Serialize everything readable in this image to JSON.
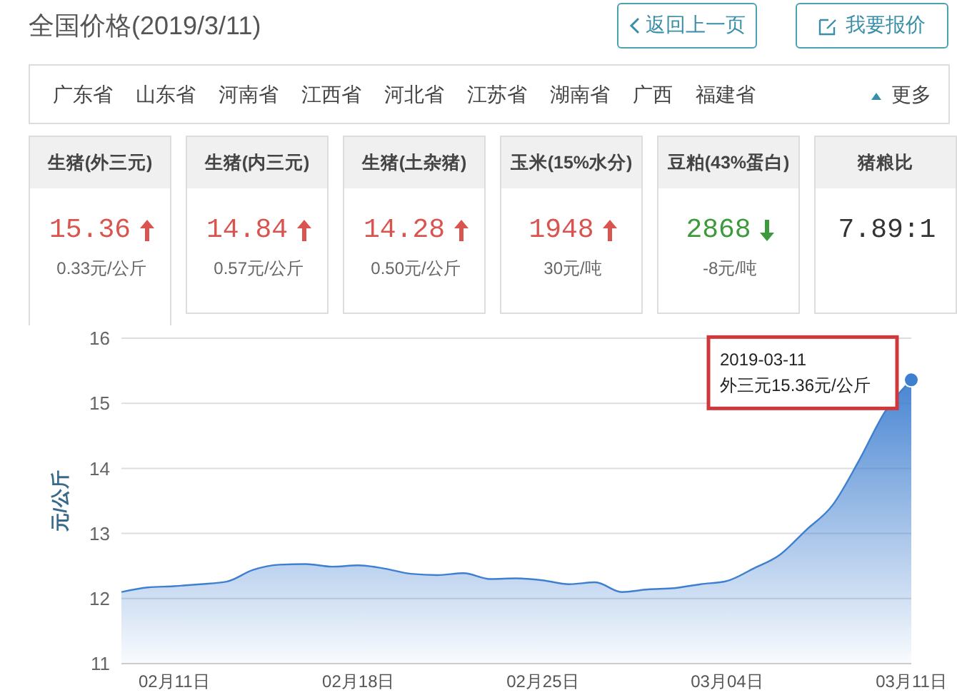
{
  "chart_data": [
    {
      "type": "other",
      "title": "全国价格(2019/3/11)",
      "annotations": [
        "返回上一页",
        "我要报价"
      ]
    },
    {
      "type": "other",
      "categories": [
        "广东省",
        "山东省",
        "河南省",
        "江西省",
        "河北省",
        "江苏省",
        "湖南省",
        "广西",
        "福建省"
      ],
      "annotations": [
        "更多"
      ]
    },
    {
      "type": "other",
      "categories": [
        "生猪(外三元)",
        "生猪(内三元)",
        "生猪(土杂猪)",
        "玉米(15%水分)",
        "豆粕(43%蛋白)",
        "猪粮比"
      ],
      "value_labels": [
        "15.36",
        "14.84",
        "14.28",
        "1948",
        "2868",
        "7.89:1"
      ],
      "annotations": [
        "0.33元/公斤",
        "0.57元/公斤",
        "0.50元/公斤",
        "30元/吨",
        "-8元/吨"
      ]
    },
    {
      "type": "area",
      "ylabel": "元/公斤",
      "color": "#3f7fd0",
      "marker": "none",
      "grid": "y",
      "x": [
        "2019-02-09",
        "2019-02-10",
        "2019-02-11",
        "2019-02-12",
        "2019-02-13",
        "2019-02-14",
        "2019-02-15",
        "2019-02-16",
        "2019-02-17",
        "2019-02-18",
        "2019-02-19",
        "2019-02-20",
        "2019-02-21",
        "2019-02-22",
        "2019-02-23",
        "2019-02-24",
        "2019-02-25",
        "2019-02-26",
        "2019-02-27",
        "2019-02-28",
        "2019-03-01",
        "2019-03-02",
        "2019-03-03",
        "2019-03-04",
        "2019-03-05",
        "2019-03-06",
        "2019-03-07",
        "2019-03-08",
        "2019-03-09",
        "2019-03-10",
        "2019-03-11"
      ],
      "values": [
        12.1,
        12.17,
        12.19,
        12.22,
        12.26,
        12.44,
        12.52,
        12.53,
        12.49,
        12.51,
        12.46,
        12.38,
        12.36,
        12.39,
        12.3,
        12.31,
        12.28,
        12.22,
        12.25,
        12.1,
        12.14,
        12.16,
        12.22,
        12.27,
        12.46,
        12.67,
        13.05,
        13.43,
        14.11,
        14.87,
        15.36
      ],
      "xlim": [
        "2019-02-09",
        "2019-03-11"
      ],
      "xticks": [
        {
          "value": "2019-02-11",
          "label": "02月11日"
        },
        {
          "value": "2019-02-18",
          "label": "02月18日"
        },
        {
          "value": "2019-02-25",
          "label": "02月25日"
        },
        {
          "value": "2019-03-04",
          "label": "03月04日"
        },
        {
          "value": "2019-03-11",
          "label": "03月11日"
        }
      ],
      "ylim": [
        11,
        16
      ],
      "yticks": [
        11,
        12,
        13,
        14,
        15,
        16
      ],
      "annotations": [
        {
          "text": "2019-03-11\n外三元15.36元/公斤",
          "x": "2019-03-11",
          "y": 15.36
        }
      ]
    }
  ]
}
